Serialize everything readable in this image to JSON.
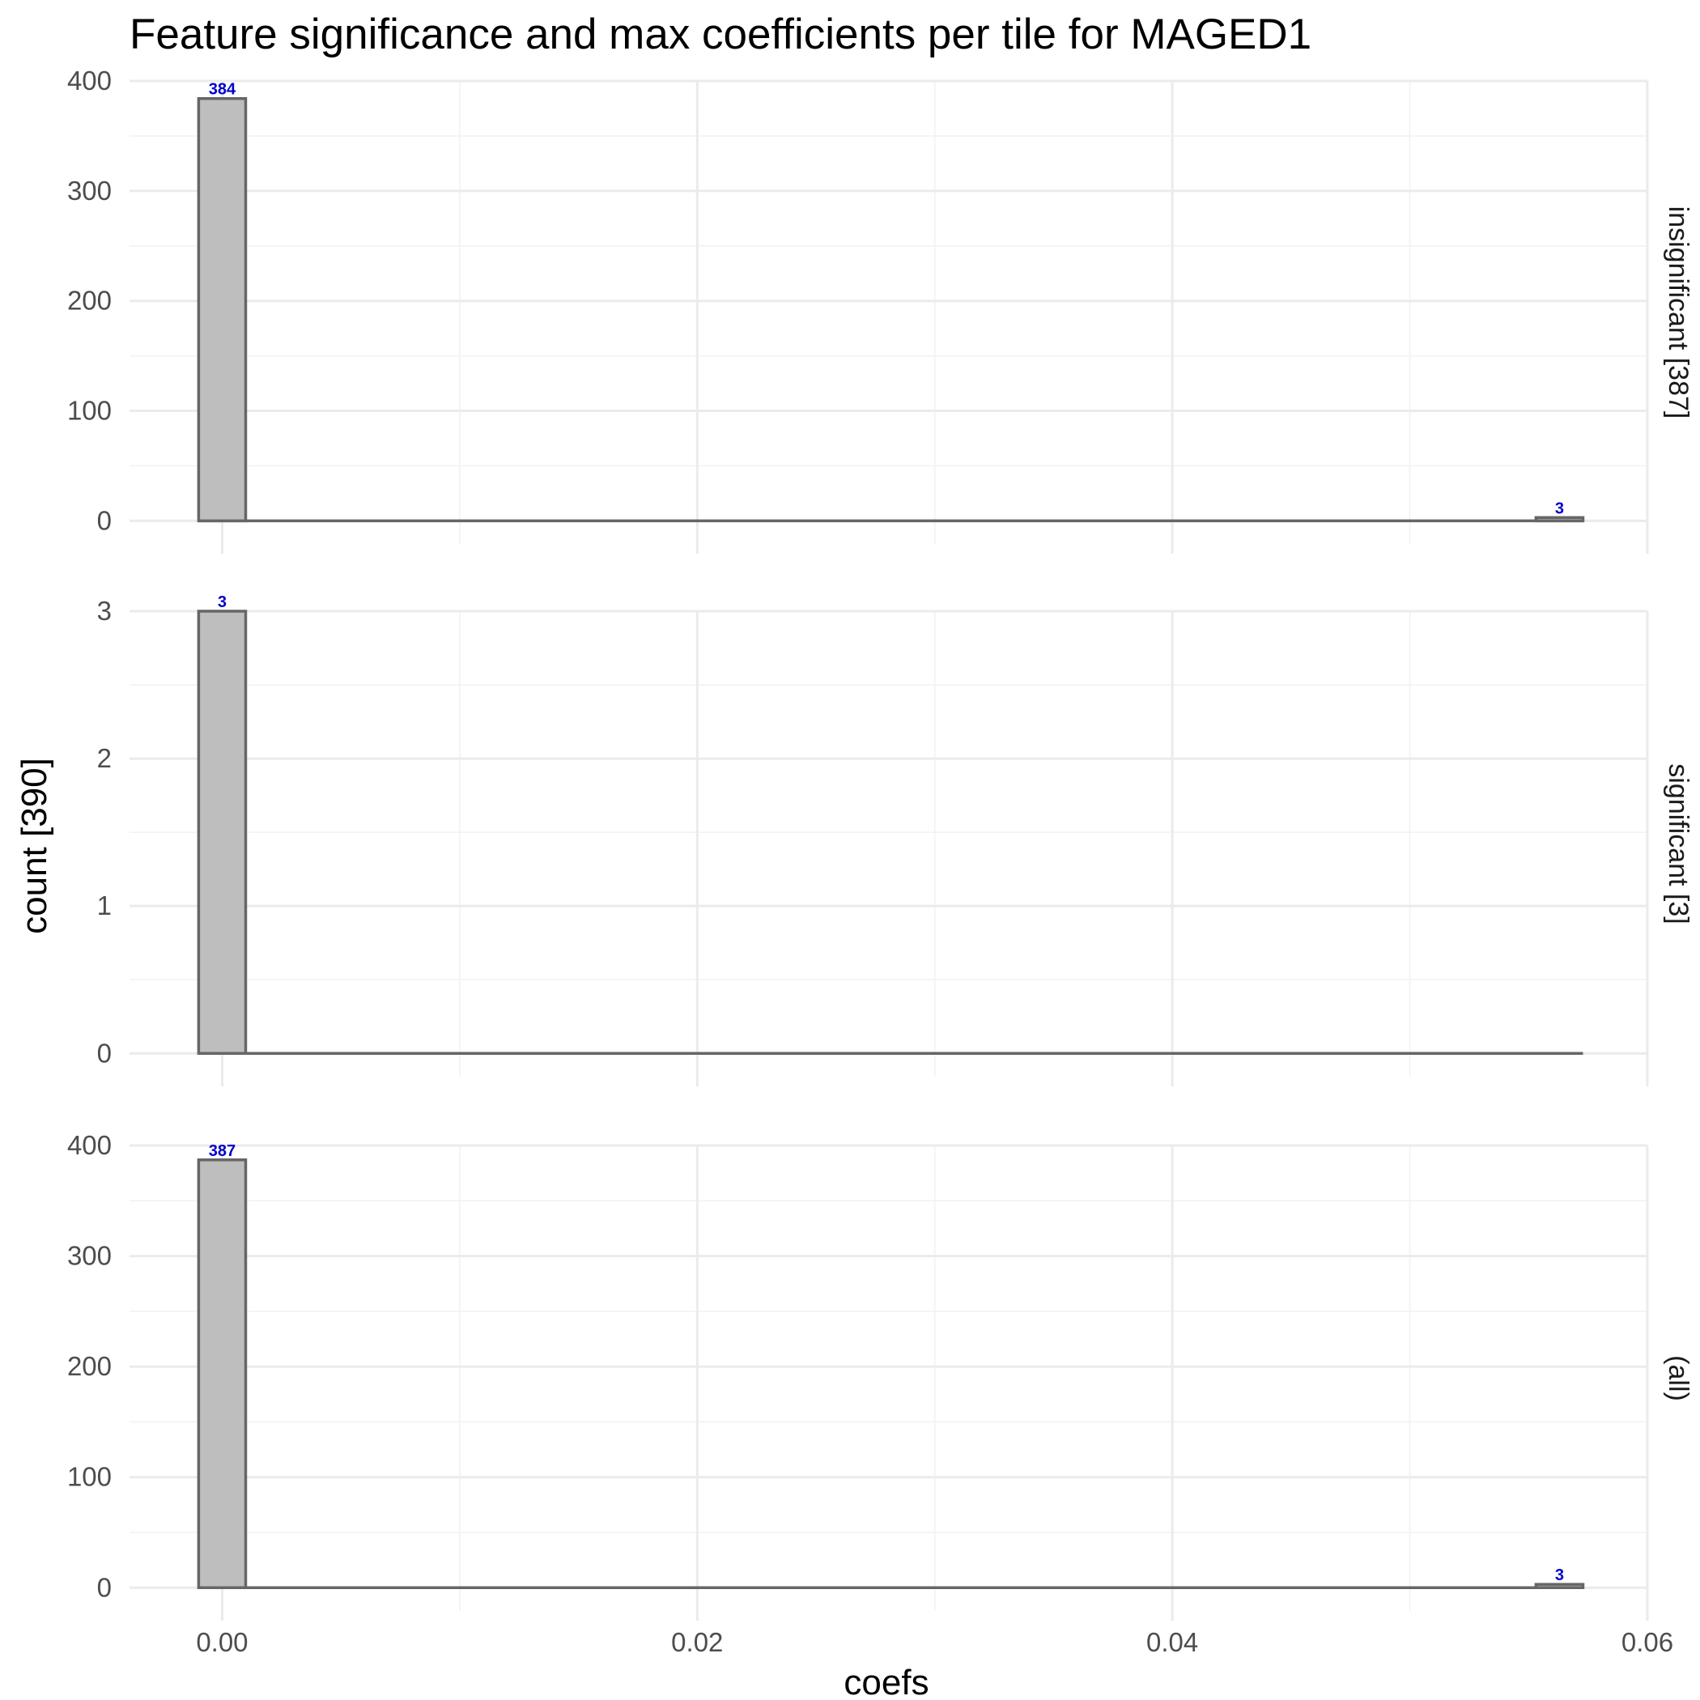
{
  "chart_data": {
    "type": "bar",
    "title": "Feature significance and max coefficients per tile for MAGED1",
    "xlabel": "coefs",
    "ylabel": "count [390]",
    "xlim": [
      -0.0039,
      0.06
    ],
    "x_ticks": [
      0.0,
      0.02,
      0.04,
      0.06
    ],
    "x_tick_labels": [
      "0.00",
      "0.02",
      "0.04",
      "0.06"
    ],
    "bin_width": 0.00198,
    "grid": true,
    "facets": [
      {
        "label": "insignificant [387]",
        "ylim": [
          0,
          400
        ],
        "y_ticks": [
          0,
          100,
          200,
          300,
          400
        ],
        "bars": [
          {
            "x": 0.0,
            "value": 384,
            "label": "384"
          },
          {
            "x": 0.0563,
            "value": 3,
            "label": "3"
          }
        ]
      },
      {
        "label": "significant [3]",
        "ylim": [
          0,
          3
        ],
        "y_ticks": [
          0,
          1,
          2,
          3
        ],
        "bars": [
          {
            "x": 0.0,
            "value": 3,
            "label": "3"
          }
        ]
      },
      {
        "label": "(all)",
        "ylim": [
          0,
          400
        ],
        "y_ticks": [
          0,
          100,
          200,
          300,
          400
        ],
        "bars": [
          {
            "x": 0.0,
            "value": 387,
            "label": "387"
          },
          {
            "x": 0.0563,
            "value": 3,
            "label": "3"
          }
        ]
      }
    ]
  },
  "colors": {
    "bar_fill": "#bebebe",
    "bar_stroke": "#666666",
    "data_label": "#0000cc",
    "grid": "#ebebeb"
  }
}
